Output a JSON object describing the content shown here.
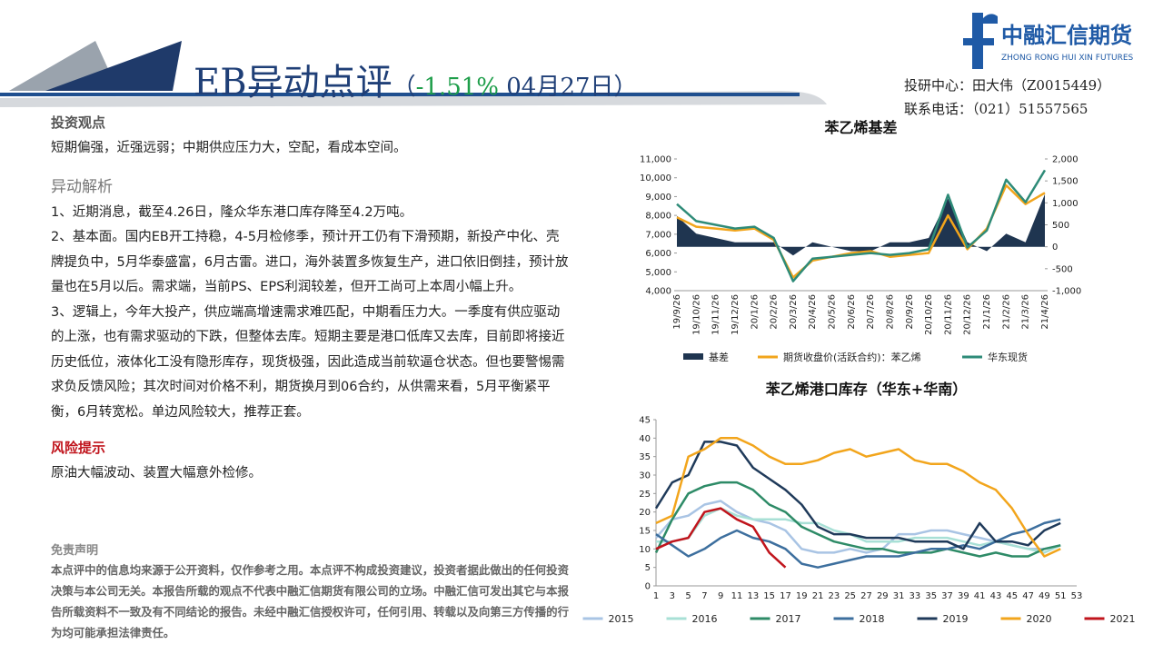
{
  "header": {
    "title": "EB异动点评",
    "open": "（",
    "change": "-1.51%",
    "date": " 04月27日）"
  },
  "logo": {
    "name": "中融汇信期货",
    "english": "ZHONG RONG HUI XIN FUTURES"
  },
  "contact": {
    "center": "投研中心：田大伟（Z0015449）",
    "phone": "联系电话：（021）51557565"
  },
  "view": {
    "heading": "投资观点",
    "text": "短期偏强，近强远弱；中期供应压力大，空配，看成本空间。"
  },
  "analysis": {
    "heading": "异动解析",
    "items": [
      "1、近期消息，截至4.26日，隆众华东港口库存降至4.2万吨。",
      "2、基本面。国内EB开工持稳，4-5月检修季，预计开工仍有下滑预期，新投产中化、壳牌提负中，5月华泰盛富，6月古雷。进口，海外装置多恢复生产，进口依旧倒挂，预计放量也在5月以后。需求端，当前PS、EPS利润较差，但开工尚可上本周小幅上升。",
      "3、逻辑上，今年大投产，供应端高增速需求难匹配，中期看压力大。一季度有供应驱动的上涨，也有需求驱动的下跌，但整体去库。短期主要是港口低库又去库，目前即将接近历史低位，液体化工没有隐形库存，现货极强，因此造成当前软逼仓状态。但也要警惕需求负反馈风险；其次时间对价格不利，期货换月到06合约，从供需来看，5月平衡紧平衡，6月转宽松。单边风险较大，推荐正套。"
    ]
  },
  "risk": {
    "heading": "风险提示",
    "text": "原油大幅波动、装置大幅意外检修。"
  },
  "disclaimer": {
    "heading": "免责声明",
    "text": "本点评中的信息均来源于公开资料，仅作参考之用。本点评不构成投资建议，投资者据此做出的任何投资决策与本公司无关。本报告所载的观点不代表中融汇信期货有限公司的立场。中融汇信可发出其它与本报告所载资料不一致及有不同结论的报告。未经中融汇信授权许可，任何引用、转载以及向第三方传播的行为均可能承担法律责任。"
  },
  "chart_data": [
    {
      "type": "line",
      "title": "苯乙烯基差",
      "x": [
        "19/9/26",
        "19/10/26",
        "19/11/26",
        "19/12/26",
        "20/1/26",
        "20/2/26",
        "20/3/26",
        "20/4/26",
        "20/5/26",
        "20/6/26",
        "20/7/26",
        "20/8/26",
        "20/9/26",
        "20/10/26",
        "20/11/26",
        "20/12/26",
        "21/1/26",
        "21/2/26",
        "21/3/26",
        "21/4/26"
      ],
      "series": [
        {
          "name": "基差",
          "type": "area",
          "axis": "y2",
          "color": "#1f3550",
          "values": [
            700,
            300,
            200,
            100,
            100,
            100,
            -200,
            100,
            0,
            -100,
            -100,
            100,
            100,
            200,
            1100,
            100,
            -100,
            300,
            100,
            1200
          ]
        },
        {
          "name": "期货收盘价(活跃合约)：苯乙烯",
          "type": "line",
          "color": "#f2a51c",
          "values": [
            7900,
            7400,
            7300,
            7200,
            7300,
            6700,
            4700,
            5600,
            5800,
            6000,
            6100,
            5800,
            5900,
            6000,
            8000,
            6200,
            7300,
            9600,
            8600,
            9200
          ]
        },
        {
          "name": "华东现货",
          "type": "line",
          "color": "#2e8b78",
          "values": [
            8600,
            7700,
            7500,
            7300,
            7400,
            6800,
            4500,
            5700,
            5800,
            5900,
            6000,
            5900,
            6000,
            6200,
            9100,
            6300,
            7200,
            9900,
            8700,
            10400
          ]
        }
      ],
      "ylim": [
        4000,
        11000
      ],
      "yticks": [
        {
          "value": 4000,
          "label": "4,000"
        },
        {
          "value": 5000,
          "label": "5,000"
        },
        {
          "value": 6000,
          "label": "6,000"
        },
        {
          "value": 7000,
          "label": "7,000"
        },
        {
          "value": 8000,
          "label": "8,000"
        },
        {
          "value": 9000,
          "label": "9,000"
        },
        {
          "value": 10000,
          "label": "10,000"
        },
        {
          "value": 11000,
          "label": "11,000"
        }
      ],
      "y2lim": [
        -1000,
        2000
      ],
      "y2ticks": [
        {
          "value": -1000,
          "label": "-1,000"
        },
        -500,
        0,
        500,
        {
          "value": 1000,
          "label": "1,000"
        },
        {
          "value": 1500,
          "label": "1,500"
        },
        {
          "value": 2000,
          "label": "2,000"
        }
      ]
    },
    {
      "type": "line",
      "title": "苯乙烯港口库存（华东+华南）",
      "x": [
        1,
        3,
        5,
        7,
        9,
        11,
        13,
        15,
        17,
        19,
        21,
        23,
        25,
        27,
        29,
        31,
        33,
        35,
        37,
        39,
        41,
        43,
        45,
        47,
        49,
        51,
        53
      ],
      "xlim": [
        1,
        53
      ],
      "series": [
        {
          "name": "2015",
          "color": "#a9c4e4",
          "values": [
            13,
            18,
            19,
            22,
            23,
            20,
            18,
            17,
            15,
            10,
            9,
            9,
            10,
            9,
            10,
            14,
            14,
            15,
            15,
            14,
            13,
            12,
            11,
            10,
            10,
            11,
            null
          ]
        },
        {
          "name": "2016",
          "color": "#a8e0d6",
          "values": [
            12,
            12,
            13,
            19,
            21,
            19,
            18,
            18,
            18,
            17,
            17,
            15,
            14,
            12,
            12,
            12,
            13,
            13,
            13,
            12,
            11,
            12,
            11,
            10,
            9,
            11,
            null
          ]
        },
        {
          "name": "2017",
          "color": "#2e8b67",
          "values": [
            9,
            18,
            25,
            27,
            28,
            28,
            26,
            22,
            20,
            16,
            14,
            12,
            11,
            10,
            10,
            9,
            9,
            9,
            10,
            9,
            8,
            9,
            8,
            8,
            10,
            11,
            null
          ]
        },
        {
          "name": "2018",
          "color": "#3d6f9e",
          "values": [
            14,
            11,
            8,
            10,
            13,
            15,
            13,
            12,
            10,
            6,
            5,
            6,
            7,
            8,
            8,
            8,
            9,
            10,
            10,
            11,
            10,
            12,
            14,
            15,
            17,
            18,
            null
          ]
        },
        {
          "name": "2019",
          "color": "#1f3a5a",
          "values": [
            21,
            28,
            30,
            39,
            39,
            38,
            32,
            29,
            26,
            22,
            16,
            14,
            14,
            13,
            13,
            13,
            12,
            12,
            12,
            10,
            17,
            12,
            12,
            11,
            15,
            17,
            null
          ]
        },
        {
          "name": "2020",
          "color": "#f2a51c",
          "values": [
            17,
            19,
            35,
            37,
            40,
            40,
            38,
            35,
            33,
            33,
            34,
            36,
            37,
            35,
            36,
            37,
            34,
            33,
            33,
            31,
            28,
            26,
            21,
            14,
            8,
            10,
            null
          ]
        },
        {
          "name": "2021",
          "color": "#c0141c",
          "values": [
            10,
            12,
            13,
            20,
            21,
            18,
            16,
            9,
            5,
            null,
            null,
            null,
            null,
            null,
            null,
            null,
            null,
            null,
            null,
            null,
            null,
            null,
            null,
            null,
            null,
            null,
            null
          ]
        }
      ],
      "ylim": [
        0,
        45
      ],
      "yticks": [
        0,
        5,
        10,
        15,
        20,
        25,
        30,
        35,
        40,
        45
      ]
    }
  ]
}
